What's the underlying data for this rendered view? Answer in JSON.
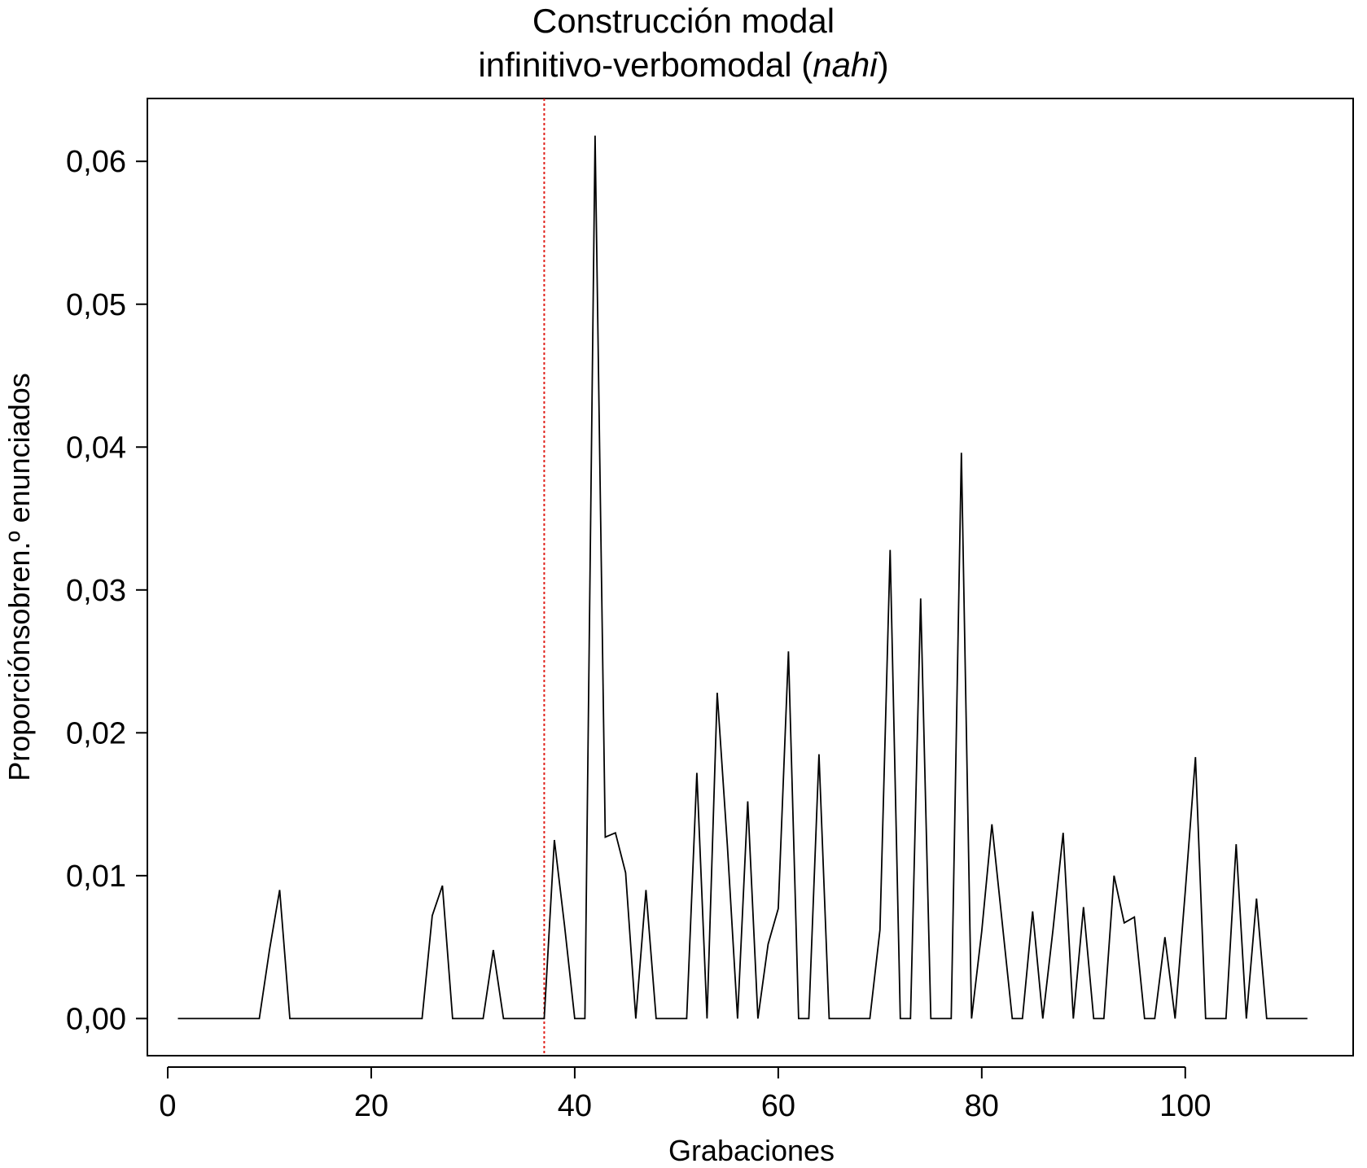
{
  "chart_data": {
    "type": "line",
    "title_line1": "Construcción modal",
    "title_line2_pre": "infinitivo-verbomodal (",
    "title_line2_italic": "nahi",
    "title_line2_post": ")",
    "xlabel": "Grabaciones",
    "ylabel": "Proporciónsobren.º enunciados",
    "xlim": [
      -2,
      116.5
    ],
    "ylim": [
      -0.0026,
      0.0644
    ],
    "xticks": [
      0,
      20,
      40,
      60,
      80,
      100
    ],
    "xtick_labels": [
      "0",
      "20",
      "40",
      "60",
      "80",
      "100"
    ],
    "yticks": [
      0.0,
      0.01,
      0.02,
      0.03,
      0.04,
      0.05,
      0.06
    ],
    "ytick_labels": [
      "0,00",
      "0,01",
      "0,02",
      "0,03",
      "0,04",
      "0,05",
      "0,06"
    ],
    "reference_line": {
      "x": 37,
      "color": "#e0201a",
      "style": "dotted"
    },
    "line_color": "#000000",
    "grid": false,
    "x": [
      1,
      2,
      3,
      4,
      5,
      6,
      7,
      8,
      9,
      10,
      11,
      12,
      13,
      14,
      15,
      16,
      17,
      18,
      19,
      20,
      21,
      22,
      23,
      24,
      25,
      26,
      27,
      28,
      29,
      30,
      31,
      32,
      33,
      34,
      35,
      36,
      37,
      38,
      39,
      40,
      41,
      42,
      43,
      44,
      45,
      46,
      47,
      48,
      49,
      50,
      51,
      52,
      53,
      54,
      55,
      56,
      57,
      58,
      59,
      60,
      61,
      62,
      63,
      64,
      65,
      66,
      67,
      68,
      69,
      70,
      71,
      72,
      73,
      74,
      75,
      76,
      77,
      78,
      79,
      80,
      81,
      82,
      83,
      84,
      85,
      86,
      87,
      88,
      89,
      90,
      91,
      92,
      93,
      94,
      95,
      96,
      97,
      98,
      99,
      100,
      101,
      102,
      103,
      104,
      105,
      106,
      107,
      108,
      109,
      110,
      111,
      112
    ],
    "y": [
      0,
      0,
      0,
      0,
      0,
      0,
      0,
      0,
      0,
      0.0048,
      0.009,
      0,
      0,
      0,
      0,
      0,
      0,
      0,
      0,
      0,
      0,
      0,
      0,
      0,
      0,
      0.0072,
      0.0093,
      0,
      0,
      0,
      0,
      0.0048,
      0,
      0,
      0,
      0,
      0,
      0.0125,
      0.0065,
      0,
      0,
      0.0618,
      0.0127,
      0.013,
      0.0102,
      0,
      0.009,
      0,
      0,
      0,
      0,
      0.0172,
      0,
      0.0228,
      0.0121,
      0,
      0.0152,
      0,
      0.0052,
      0.0077,
      0.0257,
      0,
      0,
      0.0185,
      0,
      0,
      0,
      0,
      0,
      0.0062,
      0.0328,
      0,
      0,
      0.0294,
      0,
      0,
      0,
      0.0396,
      0,
      0.0061,
      0.0136,
      0.0068,
      0,
      0,
      0.0075,
      0,
      0.0062,
      0.013,
      0,
      0.0078,
      0,
      0,
      0.01,
      0.0067,
      0.0071,
      0,
      0,
      0.0057,
      0,
      0.0089,
      0.0183,
      0,
      0,
      0,
      0.0122,
      0,
      0.0084,
      0,
      0,
      0,
      0,
      0
    ]
  }
}
